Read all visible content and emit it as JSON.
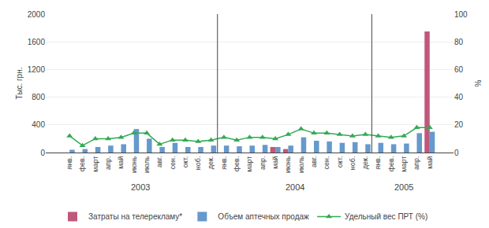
{
  "chart_data": {
    "type": "bar",
    "categories": [
      "янв.",
      "фев.",
      "март",
      "апр.",
      "май",
      "июнь",
      "июль",
      "авг.",
      "сен.",
      "окт.",
      "ноб.",
      "дек.",
      "янв.",
      "фев.",
      "март",
      "апр.",
      "май",
      "июнь",
      "июль",
      "авг.",
      "сен.",
      "окт.",
      "ноб.",
      "дек.",
      "янв.",
      "фев.",
      "март",
      "апр.",
      "май"
    ],
    "category_groups": [
      {
        "label": "2003",
        "count": 12
      },
      {
        "label": "2004",
        "count": 12
      },
      {
        "label": "2005",
        "count": 5
      }
    ],
    "series": [
      {
        "name": "Затраты на телерекламу*",
        "type": "bar",
        "color": "#c0587a",
        "values": [
          0,
          0,
          0,
          0,
          0,
          0,
          0,
          0,
          0,
          0,
          0,
          0,
          0,
          0,
          0,
          0,
          80,
          50,
          0,
          0,
          0,
          0,
          0,
          0,
          0,
          0,
          0,
          0,
          1750
        ]
      },
      {
        "name": "Объем аптечных продаж",
        "type": "bar",
        "color": "#6699cc",
        "values": [
          40,
          50,
          80,
          100,
          120,
          340,
          200,
          80,
          140,
          80,
          80,
          100,
          100,
          90,
          100,
          110,
          80,
          100,
          220,
          170,
          160,
          140,
          150,
          120,
          140,
          120,
          130,
          280,
          300
        ]
      },
      {
        "name": "Удельный вес ПРТ (%)",
        "type": "line",
        "color": "#33aa55",
        "marker": "triangle-up",
        "axis": "y2",
        "values": [
          12,
          5,
          10,
          10,
          11,
          14,
          14,
          6,
          9,
          9,
          8,
          9,
          11,
          9,
          11,
          11,
          10,
          13,
          17,
          14,
          14,
          13,
          12,
          13,
          12,
          11,
          12,
          18,
          18
        ]
      }
    ],
    "ylabel": "Тыс. грн.",
    "y2label": "%",
    "ylim": [
      0,
      2000
    ],
    "yticks": [
      0,
      400,
      800,
      1200,
      1600,
      2000
    ],
    "y2lim": [
      0,
      100
    ],
    "y2ticks": [
      0,
      20,
      40,
      60,
      80,
      100
    ],
    "grid": true,
    "legend": "bottom"
  }
}
